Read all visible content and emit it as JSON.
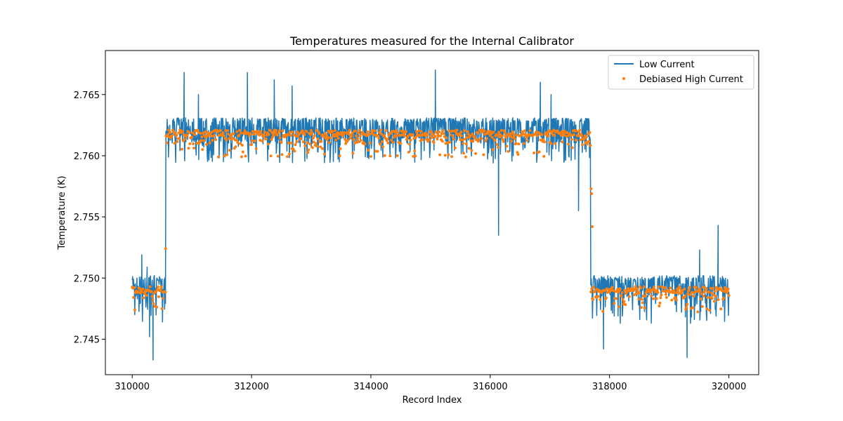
{
  "chart_data": {
    "type": "line",
    "title": "Temperatures measured for the Internal Calibrator",
    "xlabel": "Record Index",
    "ylabel": "Temperature (K)",
    "xlim": [
      309550,
      320500
    ],
    "ylim": [
      2.7421,
      2.7686
    ],
    "xticks": [
      310000,
      312000,
      314000,
      316000,
      318000,
      320000
    ],
    "xtick_labels": [
      "310000",
      "312000",
      "314000",
      "316000",
      "318000",
      "320000"
    ],
    "yticks": [
      2.745,
      2.75,
      2.755,
      2.76,
      2.765
    ],
    "ytick_labels": [
      "2.745",
      "2.750",
      "2.755",
      "2.760",
      "2.765"
    ],
    "legend_position": "top-right",
    "phases": [
      {
        "x_start": 310000,
        "x_end": 310560,
        "level": "low"
      },
      {
        "x_start": 310560,
        "x_end": 317680,
        "level": "high"
      },
      {
        "x_start": 317680,
        "x_end": 320000,
        "level": "low"
      }
    ],
    "series": [
      {
        "name": "Low Current",
        "style": "line",
        "color": "#1f77b4",
        "low_plateau": {
          "base": 2.7492,
          "min": 2.7463,
          "max": 2.7502
        },
        "high_plateau": {
          "base": 2.7618,
          "min": 2.7594,
          "max": 2.7631
        },
        "spikes": [
          [
            310160,
            2.7519
          ],
          [
            310250,
            2.7509
          ],
          [
            310350,
            2.7433
          ],
          [
            310290,
            2.7452
          ],
          [
            310870,
            2.7668
          ],
          [
            311110,
            2.765
          ],
          [
            311930,
            2.7668
          ],
          [
            312380,
            2.7662
          ],
          [
            312680,
            2.7657
          ],
          [
            315080,
            2.767
          ],
          [
            316840,
            2.766
          ],
          [
            317020,
            2.765
          ],
          [
            316140,
            2.7535
          ],
          [
            317400,
            2.7615
          ],
          [
            317480,
            2.7555
          ],
          [
            317900,
            2.7442
          ],
          [
            318180,
            2.7463
          ],
          [
            319300,
            2.7435
          ],
          [
            319510,
            2.7523
          ],
          [
            319820,
            2.7543
          ]
        ]
      },
      {
        "name": "Debiased High Current",
        "style": "scatter",
        "color": "#ff7f0e",
        "low_plateau": {
          "base": 2.749,
          "min": 2.7472,
          "max": 2.7493
        },
        "high_plateau": {
          "base": 2.7617,
          "min": 2.7599,
          "max": 2.7621
        },
        "transition_points": [
          [
            310560,
            2.7524
          ],
          [
            317690,
            2.7573
          ],
          [
            317700,
            2.7569
          ],
          [
            317710,
            2.7542
          ]
        ]
      }
    ]
  }
}
